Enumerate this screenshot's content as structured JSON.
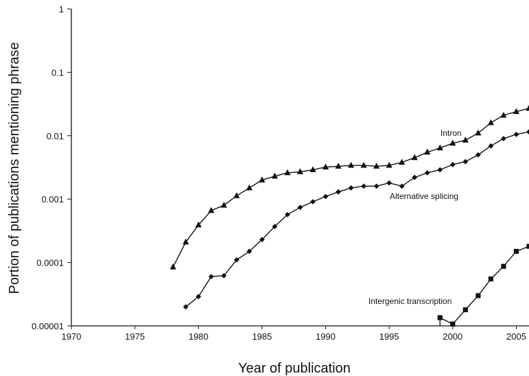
{
  "chart_data": {
    "type": "line",
    "xlabel": "Year of publication",
    "ylabel": "Portion of publications mentioning phrase",
    "xlim": [
      1970,
      2006
    ],
    "ylim": [
      1e-05,
      1
    ],
    "y_scale": "log",
    "x_ticks": [
      1970,
      1975,
      1980,
      1985,
      1990,
      1995,
      2000,
      2005
    ],
    "y_ticks": [
      {
        "value": 1e-05,
        "label": "0.00001"
      },
      {
        "value": 0.0001,
        "label": "0.0001"
      },
      {
        "value": 0.001,
        "label": "0.001"
      },
      {
        "value": 0.01,
        "label": "0.01"
      },
      {
        "value": 0.1,
        "label": "0.1"
      },
      {
        "value": 1,
        "label": "1"
      }
    ],
    "grid": false,
    "legend": "none",
    "series": [
      {
        "name": "Intron",
        "marker": "triangle",
        "x": [
          1978,
          1979,
          1980,
          1981,
          1982,
          1983,
          1984,
          1985,
          1986,
          1987,
          1988,
          1989,
          1990,
          1991,
          1992,
          1993,
          1994,
          1995,
          1996,
          1997,
          1998,
          1999,
          2000,
          2001,
          2002,
          2003,
          2004,
          2005,
          2006
        ],
        "y": [
          8.5e-05,
          0.00021,
          0.00039,
          0.00066,
          0.0008,
          0.00113,
          0.0015,
          0.002,
          0.0023,
          0.0026,
          0.0027,
          0.0029,
          0.0032,
          0.0033,
          0.0034,
          0.0034,
          0.0033,
          0.0034,
          0.0038,
          0.0045,
          0.0055,
          0.0064,
          0.0076,
          0.0085,
          0.011,
          0.016,
          0.021,
          0.024,
          0.027
        ]
      },
      {
        "name": "Alternative splicing",
        "marker": "diamond",
        "x": [
          1979,
          1980,
          1981,
          1982,
          1983,
          1984,
          1985,
          1986,
          1987,
          1988,
          1989,
          1990,
          1991,
          1992,
          1993,
          1994,
          1995,
          1996,
          1997,
          1998,
          1999,
          2000,
          2001,
          2002,
          2003,
          2004,
          2005,
          2006
        ],
        "y": [
          2e-05,
          2.9e-05,
          6e-05,
          6.2e-05,
          0.00011,
          0.00015,
          0.00023,
          0.00037,
          0.00057,
          0.00074,
          0.00091,
          0.0011,
          0.0013,
          0.0015,
          0.0016,
          0.0016,
          0.0018,
          0.0016,
          0.0022,
          0.0026,
          0.0029,
          0.0035,
          0.0039,
          0.005,
          0.0069,
          0.009,
          0.0105,
          0.0115
        ]
      },
      {
        "name": "Intergenic transcription",
        "marker": "square",
        "x": [
          1999,
          2000,
          2001,
          2002,
          2003,
          2004,
          2005,
          2006
        ],
        "y": [
          1.35e-05,
          1.07e-05,
          1.8e-05,
          3e-05,
          5.5e-05,
          8.7e-05,
          0.00015,
          0.00018
        ]
      }
    ],
    "annotations": [
      {
        "text": "Intron",
        "series": "Intron"
      },
      {
        "text": "Alternative splicing",
        "series": "Alternative splicing"
      },
      {
        "text": "Intergenic transcription",
        "series": "Intergenic transcription"
      }
    ]
  }
}
